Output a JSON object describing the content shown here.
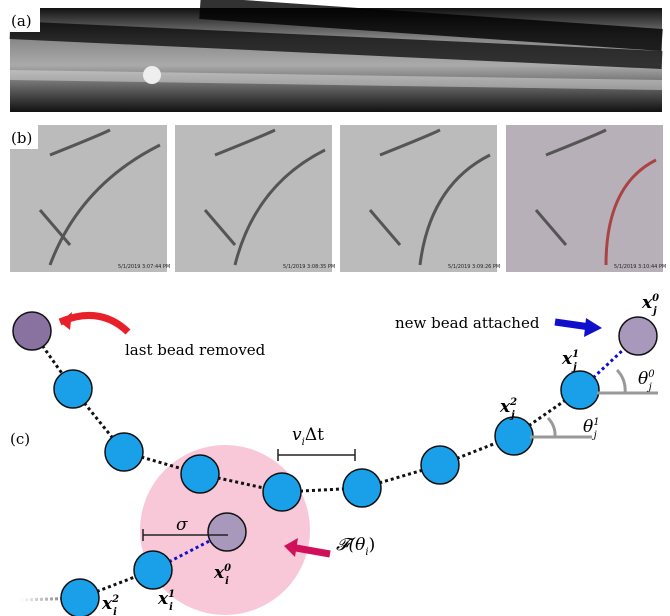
{
  "panels": {
    "a": "(a)",
    "b": "(b)",
    "c": "(c)"
  },
  "timestamps": [
    "5/1/2019 3:07:44 PM",
    "5/1/2019 3:08:35 PM",
    "5/1/2019 3:09:26 PM",
    "5/1/2019 3:10:44 PM"
  ],
  "annotations": {
    "removed": "last bead removed",
    "attached": "new bead attached"
  },
  "math_labels": [
    {
      "base": "x",
      "sub": "j",
      "sup": "0"
    },
    {
      "base": "x",
      "sub": "j",
      "sup": "1"
    },
    {
      "base": "x",
      "sub": "j",
      "sup": "2"
    },
    {
      "base": "θ",
      "sub": "j",
      "sup": "0"
    },
    {
      "base": "θ",
      "sub": "j",
      "sup": "1"
    },
    {
      "base": "x",
      "sub": "i",
      "sup": "0"
    },
    {
      "base": "x",
      "sub": "i",
      "sup": "1"
    },
    {
      "base": "x",
      "sub": "i",
      "sup": "2"
    },
    {
      "base": "v",
      "sub": "i",
      "sup": "Δt"
    },
    {
      "base": "σ",
      "sub": "",
      "sup": ""
    },
    {
      "base": "𝓕(θ",
      "sub": "i",
      "sup": ")"
    }
  ]
}
